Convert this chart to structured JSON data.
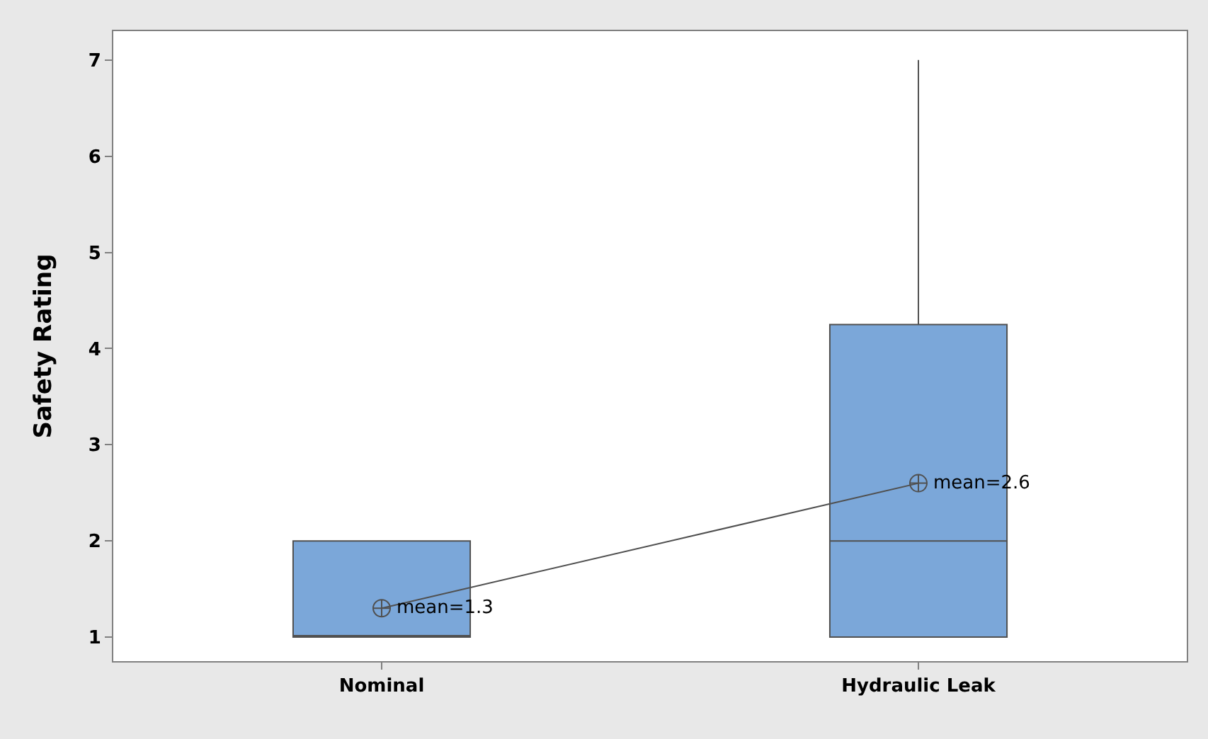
{
  "chart_data": {
    "type": "box",
    "ylabel": "Safety Rating",
    "categories": [
      "Nominal",
      "Hydraulic Leak"
    ],
    "color": "#7ba7d9",
    "boxes": [
      {
        "low": 1,
        "q1": 1,
        "median": 1,
        "q3": 2,
        "high": 2
      },
      {
        "low": 1,
        "q1": 1,
        "median": 2,
        "q3": 4.25,
        "high": 7
      }
    ],
    "series": [
      {
        "type": "line",
        "color": "#505050",
        "x": [
          "Nominal",
          "Hydraulic Leak"
        ],
        "values": [
          1.3,
          2.6
        ],
        "marker": "cross"
      }
    ],
    "annotations": [
      {
        "text": "mean=1.3",
        "x": "Nominal",
        "y": 1.3
      },
      {
        "text": "mean=2.6",
        "x": "Hydraulic Leak",
        "y": 2.6
      }
    ],
    "ylim": [
      0.75,
      7.3
    ],
    "yticks": [
      1,
      2,
      3,
      4,
      5,
      6,
      7
    ],
    "grid": false
  }
}
